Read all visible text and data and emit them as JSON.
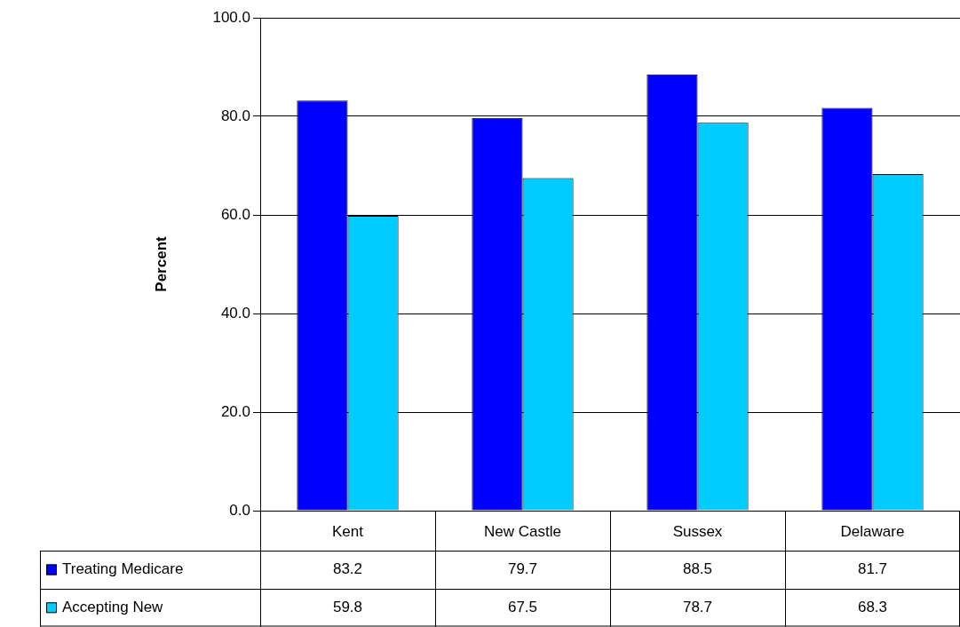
{
  "chart_data": {
    "type": "bar",
    "ylabel": "Percent",
    "categories": [
      "Kent",
      "New Castle",
      "Sussex",
      "Delaware"
    ],
    "series": [
      {
        "name": "Treating Medicare",
        "color": "#0000ff",
        "values": [
          83.2,
          79.7,
          88.5,
          81.7
        ]
      },
      {
        "name": "Accepting New",
        "color": "#00ccff",
        "values": [
          59.8,
          67.5,
          78.7,
          68.3
        ]
      }
    ],
    "ylim": [
      0,
      100
    ],
    "yticks": [
      {
        "value": 0,
        "label": "0.0"
      },
      {
        "value": 20,
        "label": "20.0"
      },
      {
        "value": 40,
        "label": "40.0"
      },
      {
        "value": 60,
        "label": "60.0"
      },
      {
        "value": 80,
        "label": "80.0"
      },
      {
        "value": 100,
        "label": "100.0"
      }
    ],
    "grid": "y",
    "legend": "bottom",
    "data_labels": true
  }
}
